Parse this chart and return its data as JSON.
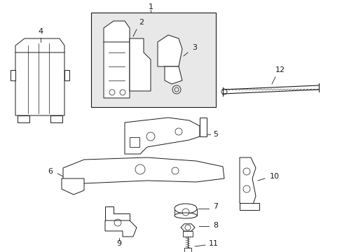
{
  "bg_color": "#ffffff",
  "line_color": "#1a1a1a",
  "box_bg": "#e8e8e8",
  "lw": 0.7
}
